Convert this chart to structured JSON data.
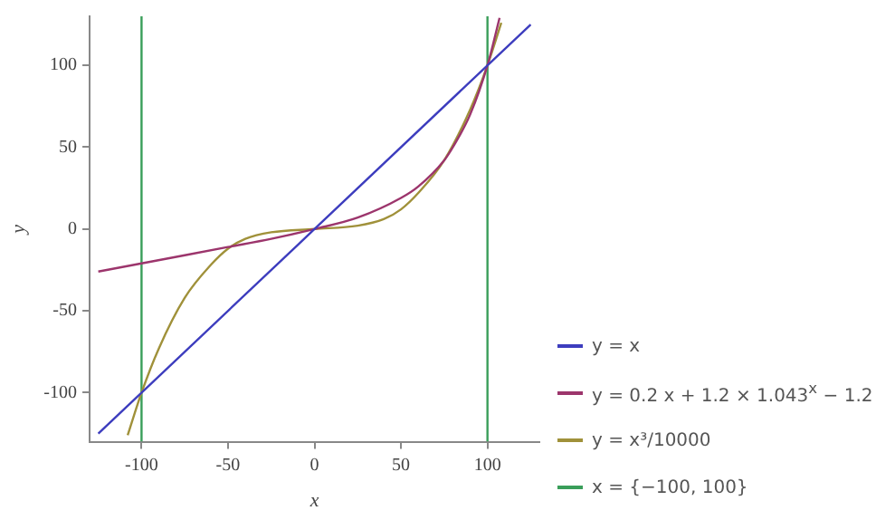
{
  "chart_data": {
    "type": "line",
    "xlabel": "x",
    "ylabel": "y",
    "xlim": [
      -130,
      130
    ],
    "ylim": [
      -130,
      130
    ],
    "xticks": [
      -100,
      -50,
      0,
      50,
      100
    ],
    "yticks": [
      -100,
      -50,
      0,
      50,
      100
    ],
    "grid": false,
    "legend": "right",
    "marker": "none",
    "line_style": "solid",
    "series": [
      {
        "name": "y = x",
        "color": "#3d3dbe",
        "x": [
          -125,
          125
        ],
        "values": [
          -125,
          125
        ]
      },
      {
        "name": "y = 0.2 x + 1.2 × 1.043$^{x}$ − 1.2",
        "color": "#9c356c",
        "x": [
          -125,
          -100,
          -50,
          -25,
          0,
          25,
          50,
          60,
          75,
          80,
          90,
          100,
          107
        ],
        "values": [
          -26,
          -21,
          -11,
          -6,
          0,
          7,
          19,
          26,
          42,
          50,
          70,
          100,
          129
        ]
      },
      {
        "name": "y = x³/10000",
        "color": "#a0913a",
        "x": [
          -108,
          -100,
          -90,
          -75,
          -60,
          -50,
          -40,
          -25,
          0,
          25,
          40,
          50,
          60,
          75,
          90,
          100,
          108
        ],
        "values": [
          -126,
          -100,
          -73,
          -42,
          -22,
          -12,
          -6,
          -2,
          0,
          2,
          6,
          12,
          22,
          42,
          73,
          100,
          126
        ]
      },
      {
        "name": "x = {−100, 100}",
        "color": "#3a9e5a",
        "x": [
          -100,
          -100
        ],
        "values": [
          -130,
          130
        ]
      },
      {
        "color": "#3a9e5a",
        "x": [
          100,
          100
        ],
        "values": [
          -130,
          130
        ]
      }
    ]
  }
}
